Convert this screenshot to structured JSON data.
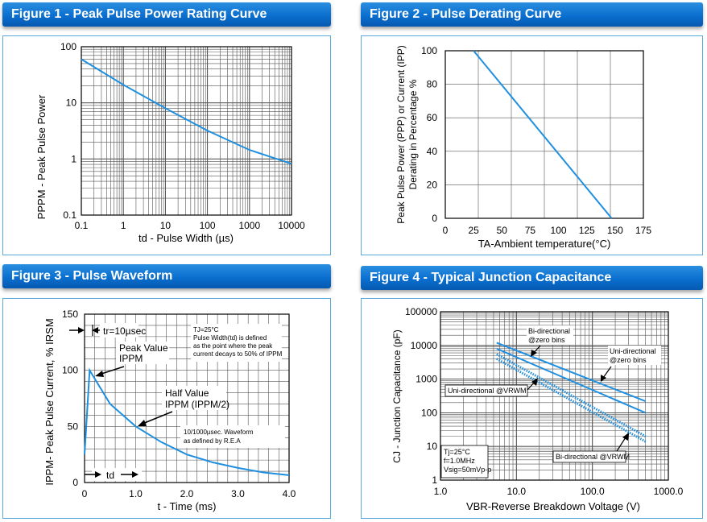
{
  "figures": [
    {
      "header": "Figure 1 - Peak Pulse Power Rating Curve"
    },
    {
      "header": "Figure 2 - Pulse Derating Curve"
    },
    {
      "header": "Figure 3 - Pulse Waveform"
    },
    {
      "header": "Figure 4 - Typical Junction Capacitance"
    }
  ],
  "fig1_text": {
    "ylabel": "PPPM  -  Peak  Pulse  Power",
    "xlabel": "td - Pulse Width (µs)"
  },
  "fig2_text": {
    "ylabel_1": "Peak Pulse Power (PPP) or Current (IPP)",
    "ylabel_2": "Derating in Percentage %",
    "xlabel": "TA-Ambient temperature(°C)"
  },
  "fig3_text": {
    "ylabel": "IPPM- Peak Pulse Current, % IRSM",
    "xlabel": "t - Time (ms)",
    "tr_label": "tr=10µsec",
    "peak_1": "Peak Value",
    "peak_2": "IPPM",
    "half_1": "Half Value",
    "half_2": "IPPM (IPPM/2)",
    "note_1": "TJ=25°C",
    "note_2": "Pulse Width(td) is defined",
    "note_3": "as the point where the peak",
    "note_4": "current decays to 50% of IPPM",
    "wave_1": "10/1000µsec. Waveform",
    "wave_2": "as defined by R.E.A",
    "td_label": "td"
  },
  "fig4_text": {
    "ylabel": "CJ - Junction Capacitance (pF)",
    "xlabel": "VBR-Reverse Breakdown Voltage (V)",
    "lbl_bi_zero_1": "Bi-directional",
    "lbl_bi_zero_2": "@zero bins",
    "lbl_uni_zero_1": "Uni-directional",
    "lbl_uni_zero_2": "@zero bins",
    "lbl_uni_v": "Uni-directional @VRWM",
    "lbl_bi_v": "Bi-directional @VRWM",
    "cond_1": "Tj=25°C",
    "cond_2": "f=1.0MHz",
    "cond_3": "Vsig=50mVp-p"
  },
  "chart_data": [
    {
      "type": "line",
      "title": "Figure 1 - Peak Pulse Power Rating Curve",
      "xlabel": "td - Pulse Width (µs)",
      "ylabel": "PPPM - Peak Pulse Power",
      "xscale": "log",
      "yscale": "log",
      "xlim": [
        0.1,
        10000
      ],
      "ylim": [
        0.1,
        100
      ],
      "xticks": [
        "0.1",
        "1",
        "10",
        "100",
        "1000",
        "10000"
      ],
      "yticks": [
        "0.1",
        "1",
        "10",
        "100"
      ],
      "grid": true,
      "series": [
        {
          "x": [
            0.1,
            1,
            10,
            100,
            1000,
            10000
          ],
          "y": [
            60,
            21,
            8,
            3.2,
            1.45,
            0.82
          ]
        }
      ],
      "color": "#1f8fe0"
    },
    {
      "type": "line",
      "title": "Figure 2 - Pulse Derating Curve",
      "xlabel": "TA-Ambient temperature(°C)",
      "ylabel": "Peak Pulse Power (PPP) or Current (IPP) Derating in Percentage %",
      "xlim": [
        0,
        175
      ],
      "ylim": [
        0,
        100
      ],
      "xticks": [
        "0",
        "25",
        "50",
        "75",
        "100",
        "125",
        "150",
        "175"
      ],
      "yticks": [
        "0",
        "20",
        "40",
        "60",
        "80",
        "100"
      ],
      "grid": true,
      "series": [
        {
          "x": [
            25,
            147
          ],
          "y": [
            100,
            0
          ]
        }
      ],
      "color": "#1f8fe0"
    },
    {
      "type": "line",
      "title": "Figure 3 - Pulse Waveform",
      "xlabel": "t - Time (ms)",
      "ylabel": "IPPM- Peak Pulse Current, % IRSM",
      "xlim": [
        0,
        4.0
      ],
      "ylim": [
        0,
        150
      ],
      "xticks": [
        "0",
        "1.0",
        "2.0",
        "3.0",
        "4.0"
      ],
      "yticks": [
        "0",
        "50",
        "100",
        "150"
      ],
      "grid": true,
      "series": [
        {
          "x": [
            0,
            0.1,
            0.5,
            1.0,
            1.5,
            2.0,
            2.5,
            3.0,
            3.5,
            4.0
          ],
          "y": [
            25,
            100,
            70,
            50,
            36,
            25,
            18,
            13,
            9,
            6.5
          ]
        }
      ],
      "color": "#1f8fe0"
    },
    {
      "type": "line",
      "title": "Figure 4 - Typical Junction Capacitance",
      "xlabel": "VBR-Reverse Breakdown Voltage (V)",
      "ylabel": "CJ - Junction Capacitance (pF)",
      "xscale": "log",
      "yscale": "log",
      "xlim": [
        1.0,
        1000.0
      ],
      "ylim": [
        1,
        100000
      ],
      "xticks": [
        "1.0",
        "10.0",
        "100.0",
        "1000.0"
      ],
      "yticks": [
        "1",
        "10",
        "100",
        "1000",
        "10000",
        "100000"
      ],
      "grid": true,
      "series": [
        {
          "name": "Uni-directional @zero bins",
          "x": [
            5.5,
            500
          ],
          "y": [
            12000,
            220
          ],
          "style": "solid"
        },
        {
          "name": "Bi-directional @zero bins",
          "x": [
            5.5,
            500
          ],
          "y": [
            8000,
            100
          ],
          "style": "solid"
        },
        {
          "name": "Uni-directional @VRWM",
          "x": [
            5.5,
            500
          ],
          "y": [
            5500,
            20
          ],
          "style": "dotted"
        },
        {
          "name": "Bi-directional @VRWM",
          "x": [
            5.5,
            500
          ],
          "y": [
            4000,
            14
          ],
          "style": "dotted"
        }
      ],
      "color": "#1f8fe0"
    }
  ]
}
